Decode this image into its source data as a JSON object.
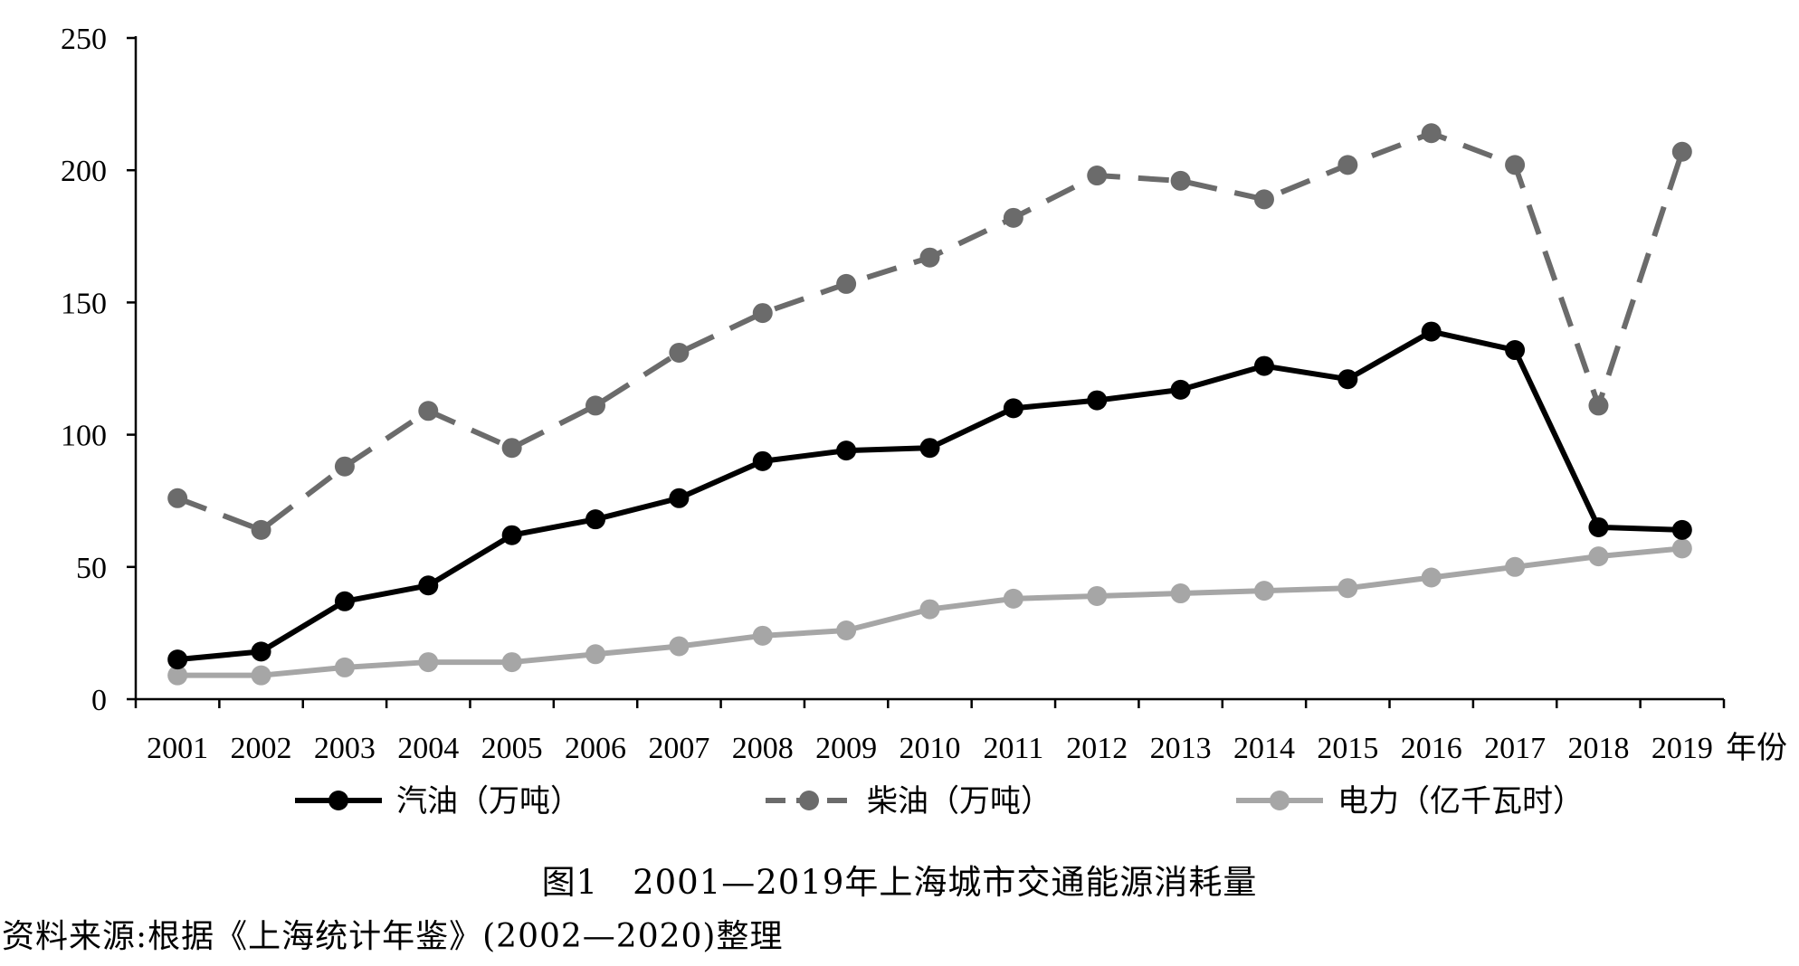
{
  "chart_data": {
    "type": "line",
    "title": "",
    "xlabel": "年份",
    "ylabel": "",
    "ylim": [
      0,
      250
    ],
    "yticks": [
      0,
      50,
      100,
      150,
      200,
      250
    ],
    "categories": [
      "2001",
      "2002",
      "2003",
      "2004",
      "2005",
      "2006",
      "2007",
      "2008",
      "2009",
      "2010",
      "2011",
      "2012",
      "2013",
      "2014",
      "2015",
      "2016",
      "2017",
      "2018",
      "2019"
    ],
    "series": [
      {
        "name": "汽油（万吨）",
        "style": "solid",
        "color": "#000000",
        "values": [
          15,
          18,
          37,
          43,
          62,
          68,
          76,
          90,
          94,
          95,
          110,
          113,
          117,
          126,
          121,
          139,
          132,
          65,
          64
        ]
      },
      {
        "name": "柴油（万吨）",
        "style": "dashed",
        "color": "#6b6b6b",
        "values": [
          76,
          64,
          88,
          109,
          95,
          111,
          131,
          146,
          157,
          167,
          182,
          198,
          196,
          189,
          202,
          214,
          202,
          111,
          207
        ]
      },
      {
        "name": "电力（亿千瓦时）",
        "style": "solid",
        "color": "#a6a6a6",
        "values": [
          9,
          9,
          12,
          14,
          14,
          17,
          20,
          24,
          26,
          34,
          38,
          39,
          40,
          41,
          42,
          46,
          50,
          54,
          57
        ]
      }
    ],
    "grid": false,
    "legend_position": "bottom"
  },
  "caption": "图1　2001—2019年上海城市交通能源消耗量",
  "source": "资料来源:根据《上海统计年鉴》(2002—2020)整理"
}
